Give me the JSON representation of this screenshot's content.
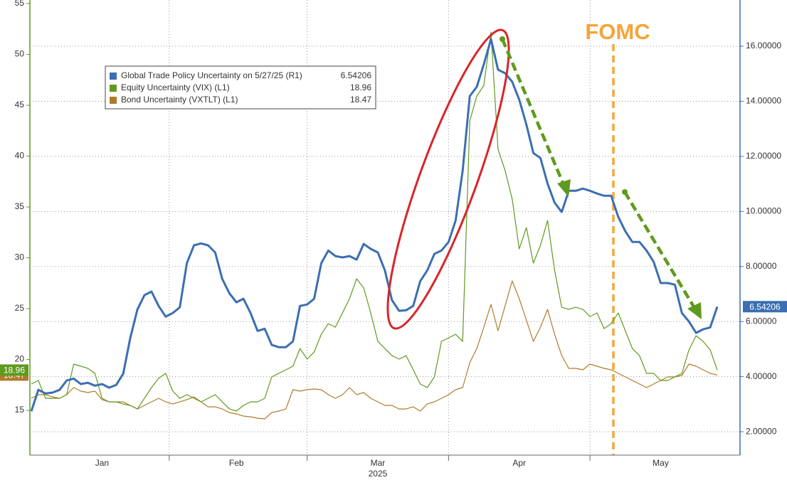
{
  "chart_data": {
    "type": "line",
    "categories": [
      null,
      null,
      null,
      null,
      null,
      null,
      null,
      null,
      null,
      null,
      "Jan",
      null,
      null,
      null,
      null,
      null,
      null,
      null,
      null,
      null,
      null,
      null,
      null,
      null,
      null,
      null,
      null,
      null,
      null,
      "Feb",
      null,
      null,
      null,
      null,
      null,
      null,
      null,
      null,
      null,
      null,
      null,
      null,
      null,
      null,
      null,
      null,
      null,
      null,
      null,
      "Mar",
      null,
      null,
      null,
      null,
      null,
      null,
      null,
      null,
      null,
      null,
      null,
      null,
      null,
      null,
      null,
      null,
      null,
      null,
      null,
      "Apr",
      null,
      null,
      null,
      null,
      null,
      null,
      null,
      null,
      null,
      null,
      null,
      null,
      null,
      null,
      null,
      null,
      null,
      null,
      null,
      "May",
      null,
      null,
      null,
      null,
      null,
      null,
      null,
      null
    ],
    "year_label": "2025",
    "ylim": [
      10.6,
      55.35
    ],
    "yticks": [
      15,
      20,
      25,
      30,
      35,
      40,
      45,
      50,
      55
    ],
    "y2lim": [
      1.15,
      17.68
    ],
    "y2ticks": [
      {
        "value": 2,
        "label": "2.00000"
      },
      {
        "value": 4,
        "label": "4.00000"
      },
      {
        "value": 6,
        "label": "6.00000"
      },
      {
        "value": 8,
        "label": "8.00000"
      },
      {
        "value": 10,
        "label": "10.00000"
      },
      {
        "value": 12,
        "label": "12.00000"
      },
      {
        "value": 14,
        "label": "14.00000"
      },
      {
        "value": 16,
        "label": "16.00000"
      }
    ],
    "grid": true,
    "legend": "upper left",
    "series": [
      {
        "name": "Global Trade Policy Uncertainty on 5/27/25 (R1)",
        "color": "#3b6fb1",
        "axis": "y2",
        "last_value": 6.54206,
        "values": [
          2.74,
          3.52,
          3.39,
          3.42,
          3.52,
          3.86,
          3.93,
          3.73,
          3.78,
          3.67,
          3.73,
          3.6,
          3.7,
          4.11,
          5.41,
          6.44,
          6.96,
          7.09,
          6.57,
          6.18,
          6.31,
          6.52,
          8.12,
          8.77,
          8.84,
          8.77,
          8.51,
          7.55,
          7.03,
          6.7,
          6.83,
          6.31,
          5.66,
          5.74,
          5.15,
          5.07,
          5.07,
          5.28,
          6.57,
          6.62,
          6.83,
          8.12,
          8.58,
          8.38,
          8.33,
          8.38,
          8.25,
          8.82,
          8.64,
          8.51,
          7.86,
          6.78,
          6.39,
          6.41,
          6.57,
          7.47,
          7.86,
          8.46,
          8.58,
          8.89,
          9.67,
          11.48,
          14.19,
          14.53,
          15.35,
          16.26,
          15.15,
          15.02,
          14.71,
          14.06,
          13.16,
          12.12,
          11.94,
          11.01,
          10.32,
          9.98,
          10.75,
          10.75,
          10.83,
          10.75,
          10.65,
          10.57,
          10.57,
          9.8,
          9.28,
          8.89,
          8.89,
          8.58,
          8.17,
          7.4,
          7.4,
          7.34,
          6.31,
          6.0,
          5.59,
          5.72,
          5.79,
          6.54
        ]
      },
      {
        "name": "Equity Uncertainty (VIX) (L1)",
        "color": "#5f9a1e",
        "axis": "y",
        "last_value": 18.96,
        "values": [
          17.59,
          17.94,
          16.19,
          16.19,
          16.19,
          16.54,
          19.55,
          19.34,
          19.13,
          18.64,
          16.19,
          15.84,
          15.84,
          15.63,
          15.49,
          15.14,
          16.19,
          17.24,
          18.15,
          18.64,
          16.89,
          16.19,
          16.54,
          16.19,
          15.84,
          16.19,
          16.54,
          15.84,
          15.14,
          14.93,
          15.49,
          15.84,
          15.84,
          16.19,
          18.29,
          18.64,
          18.99,
          19.34,
          21.08,
          20.04,
          20.73,
          22.48,
          23.53,
          23.18,
          24.58,
          25.98,
          27.94,
          27.03,
          24.58,
          21.78,
          21.08,
          20.38,
          20.04,
          20.38,
          18.99,
          17.59,
          17.24,
          18.29,
          21.78,
          22.13,
          22.48,
          21.78,
          43.46,
          45.91,
          46.96,
          52.2,
          40.66,
          38.57,
          35.77,
          30.87,
          32.97,
          29.48,
          31.22,
          33.67,
          28.78,
          25.14,
          24.93,
          25.14,
          24.93,
          24.23,
          24.58,
          23.04,
          23.53,
          24.58,
          22.83,
          21.08,
          20.38,
          18.64,
          18.64,
          17.94,
          17.94,
          18.29,
          18.64,
          20.94,
          22.34,
          21.78,
          20.94,
          18.96
        ]
      },
      {
        "name": "Bond Uncertainty (VXTLT) (L1)",
        "color": "#b07a2c",
        "axis": "y",
        "last_value": 18.47,
        "values": [
          16.19,
          16.54,
          16.54,
          16.33,
          16.19,
          16.54,
          17.24,
          16.89,
          16.75,
          16.89,
          16.05,
          15.84,
          15.84,
          15.84,
          15.49,
          15.14,
          15.49,
          15.84,
          16.19,
          15.84,
          15.63,
          15.84,
          16.05,
          16.33,
          15.84,
          15.35,
          15.35,
          15.14,
          14.79,
          14.65,
          14.44,
          14.37,
          14.23,
          14.16,
          14.79,
          14.93,
          15.14,
          17.03,
          16.89,
          17.03,
          17.1,
          17.03,
          16.54,
          16.19,
          16.54,
          17.24,
          16.54,
          16.75,
          16.19,
          15.84,
          15.49,
          15.49,
          15.14,
          15.14,
          15.35,
          14.93,
          15.63,
          15.84,
          16.19,
          16.54,
          17.03,
          17.24,
          19.69,
          21.08,
          23.18,
          25.42,
          22.83,
          25.28,
          27.73,
          25.98,
          23.88,
          21.78,
          23.18,
          24.93,
          22.48,
          20.38,
          19.13,
          19.13,
          18.99,
          19.55,
          19.34,
          19.13,
          18.99,
          18.64,
          18.29,
          17.94,
          17.59,
          17.24,
          17.59,
          17.94,
          18.29,
          18.29,
          18.43,
          19.55,
          19.34,
          18.99,
          18.64,
          18.47
        ]
      }
    ],
    "annotations": [
      {
        "text": "FOMC",
        "color": "#f5a53a"
      }
    ]
  }
}
